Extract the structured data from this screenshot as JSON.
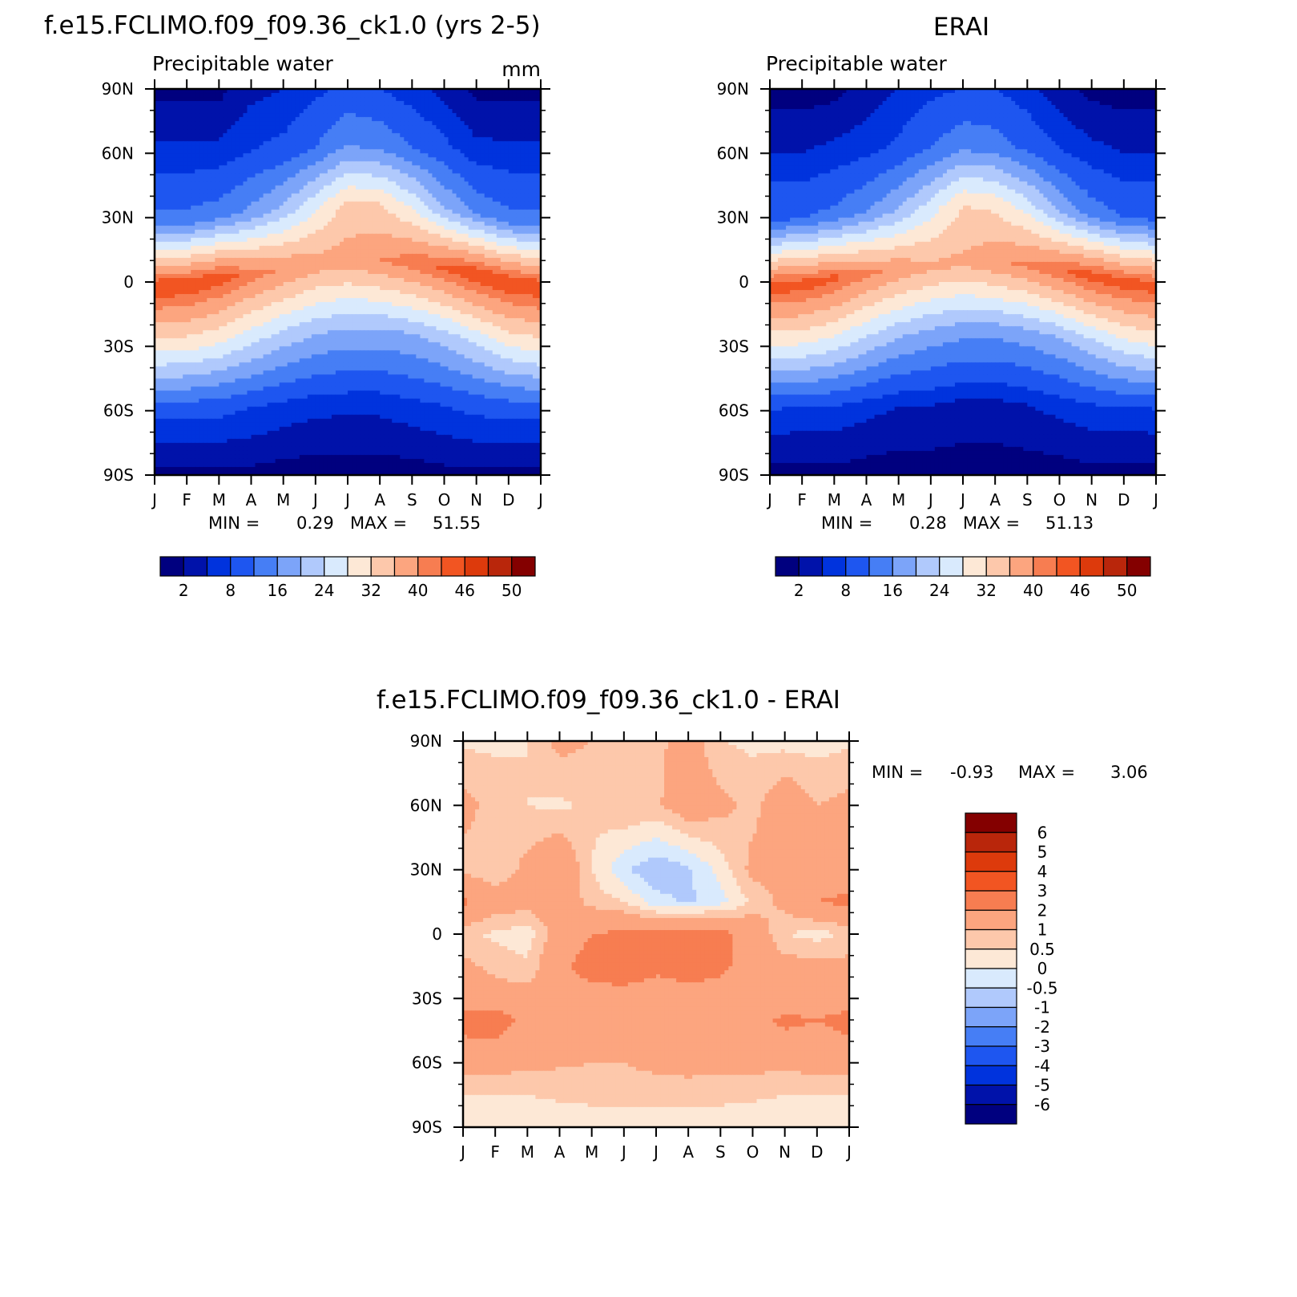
{
  "chart_data": [
    {
      "type": "heatmap",
      "title": "f.e15.FCLIMO.f09_f09.36_ck1.0 (yrs 2-5)",
      "subtitle": "Precipitable water",
      "units": "mm",
      "x_ticks": [
        "J",
        "F",
        "M",
        "A",
        "M",
        "J",
        "J",
        "A",
        "S",
        "O",
        "N",
        "D",
        "J"
      ],
      "y_ticks": [
        "90N",
        "60N",
        "30N",
        "0",
        "30S",
        "60S",
        "90S"
      ],
      "y_range": [
        -90,
        90
      ],
      "min_label": "MIN =",
      "min_value": "0.29",
      "max_label": "MAX =",
      "max_value": "51.55",
      "peak_lat_by_month": [
        -2,
        -1,
        2,
        4,
        6,
        8,
        10,
        10,
        9,
        7,
        4,
        0,
        -2
      ],
      "field_rows": [
        {
          "lat": 90,
          "values": [
            1,
            1,
            1,
            4,
            5,
            7,
            9,
            8,
            6,
            4,
            1,
            1,
            1
          ]
        },
        {
          "lat": 60,
          "values": [
            6,
            6,
            6,
            8,
            9,
            12,
            16,
            15,
            12,
            9,
            6,
            6,
            6
          ]
        },
        {
          "lat": 30,
          "values": [
            13,
            13,
            14,
            17,
            21,
            27,
            33,
            32,
            27,
            20,
            15,
            13,
            13
          ]
        },
        {
          "lat": 0,
          "values": [
            46,
            46,
            45,
            42,
            40,
            38,
            38,
            40,
            42,
            44,
            46,
            46,
            46
          ]
        },
        {
          "lat": -30,
          "values": [
            29,
            29,
            28,
            25,
            22,
            20,
            19,
            19,
            20,
            22,
            25,
            28,
            29
          ]
        },
        {
          "lat": -60,
          "values": [
            9,
            9,
            9,
            8,
            7,
            6,
            6,
            6,
            7,
            8,
            9,
            9,
            9
          ]
        },
        {
          "lat": -90,
          "values": [
            1,
            1,
            1,
            1,
            0.5,
            0.3,
            0.3,
            0.3,
            0.5,
            1,
            1,
            1,
            1
          ]
        }
      ],
      "colorbar": {
        "colors": [
          "#00007f",
          "#0012aa",
          "#0033dd",
          "#1e56f0",
          "#467ef5",
          "#7ca4f9",
          "#b0c9fc",
          "#d9eafd",
          "#fde8d6",
          "#fdc8ab",
          "#fca57f",
          "#f77d51",
          "#f25522",
          "#dd3a0c",
          "#b9260b",
          "#840000"
        ],
        "labels": [
          "2",
          "8",
          "16",
          "24",
          "32",
          "40",
          "46",
          "50"
        ]
      }
    },
    {
      "type": "heatmap",
      "title": "ERAI",
      "subtitle": "Precipitable water",
      "x_ticks": [
        "J",
        "F",
        "M",
        "A",
        "M",
        "J",
        "J",
        "A",
        "S",
        "O",
        "N",
        "D",
        "J"
      ],
      "y_ticks": [
        "90N",
        "60N",
        "30N",
        "0",
        "30S",
        "60S",
        "90S"
      ],
      "y_range": [
        -90,
        90
      ],
      "min_label": "MIN =",
      "min_value": "0.28",
      "max_label": "MAX =",
      "max_value": "51.13",
      "peak_lat_by_month": [
        -2,
        -1,
        2,
        4,
        6,
        7,
        9,
        9,
        8,
        6,
        3,
        0,
        -2
      ],
      "field_rows": [
        {
          "lat": 90,
          "values": [
            0.5,
            0.5,
            1,
            3,
            5,
            7,
            8,
            8,
            6,
            3,
            1,
            0.5,
            0.5
          ]
        },
        {
          "lat": 60,
          "values": [
            5,
            5,
            6,
            7,
            9,
            12,
            15,
            14,
            11,
            8,
            6,
            5,
            5
          ]
        },
        {
          "lat": 30,
          "values": [
            12,
            12,
            13,
            16,
            20,
            26,
            32,
            31,
            26,
            19,
            14,
            12,
            12
          ]
        },
        {
          "lat": 0,
          "values": [
            45,
            45,
            44,
            41,
            39,
            37,
            37,
            39,
            41,
            43,
            45,
            45,
            45
          ]
        },
        {
          "lat": -30,
          "values": [
            27,
            27,
            26,
            23,
            20,
            18,
            17,
            17,
            18,
            20,
            23,
            26,
            27
          ]
        },
        {
          "lat": -60,
          "values": [
            7,
            7,
            7,
            6,
            5,
            5,
            4,
            4,
            5,
            6,
            7,
            7,
            7
          ]
        },
        {
          "lat": -90,
          "values": [
            1,
            1,
            1,
            0.5,
            0.3,
            0.3,
            0.3,
            0.3,
            0.3,
            0.5,
            1,
            1,
            1
          ]
        }
      ],
      "colorbar": {
        "colors": [
          "#00007f",
          "#0012aa",
          "#0033dd",
          "#1e56f0",
          "#467ef5",
          "#7ca4f9",
          "#b0c9fc",
          "#d9eafd",
          "#fde8d6",
          "#fdc8ab",
          "#fca57f",
          "#f77d51",
          "#f25522",
          "#dd3a0c",
          "#b9260b",
          "#840000"
        ],
        "labels": [
          "2",
          "8",
          "16",
          "24",
          "32",
          "40",
          "46",
          "50"
        ]
      }
    },
    {
      "type": "heatmap",
      "title": "f.e15.FCLIMO.f09_f09.36_ck1.0 - ERAI",
      "x_ticks": [
        "J",
        "F",
        "M",
        "A",
        "M",
        "J",
        "J",
        "A",
        "S",
        "O",
        "N",
        "D",
        "J"
      ],
      "y_ticks": [
        "90N",
        "60N",
        "30N",
        "0",
        "30S",
        "60S",
        "90S"
      ],
      "y_range": [
        -90,
        90
      ],
      "min_label": "MIN =",
      "min_value": "-0.93",
      "max_label": "MAX =",
      "max_value": "3.06",
      "field_rows": [
        {
          "lat": 90,
          "values": [
            0.4,
            0.4,
            0.5,
            1.2,
            1.0,
            0.5,
            0.8,
            1.4,
            0.5,
            0.4,
            0.3,
            0.3,
            0.4
          ]
        },
        {
          "lat": 60,
          "values": [
            1.2,
            0.8,
            0.5,
            0.4,
            0.6,
            1.0,
            0.9,
            1.5,
            1.2,
            0.8,
            1.6,
            1.0,
            1.2
          ]
        },
        {
          "lat": 30,
          "values": [
            0.8,
            0.6,
            1.2,
            1.8,
            0.5,
            -0.4,
            -0.9,
            -0.6,
            0.2,
            1.2,
            1.3,
            1.5,
            1.4
          ]
        },
        {
          "lat": 15,
          "values": [
            2.2,
            1.4,
            1.3,
            1.5,
            0.8,
            0.5,
            -0.3,
            -0.6,
            -0.2,
            0.6,
            1.2,
            2.0,
            2.2
          ]
        },
        {
          "lat": 0,
          "values": [
            0.6,
            0.4,
            0.2,
            1.4,
            2.0,
            2.2,
            2.2,
            2.6,
            2.3,
            1.6,
            0.5,
            0.3,
            0.6
          ]
        },
        {
          "lat": -15,
          "values": [
            1.2,
            0.8,
            0.6,
            1.8,
            2.4,
            2.6,
            2.2,
            2.5,
            2.2,
            1.6,
            1.3,
            1.2,
            1.2
          ]
        },
        {
          "lat": -30,
          "values": [
            1.6,
            1.4,
            1.3,
            1.5,
            1.6,
            1.6,
            1.5,
            1.5,
            1.6,
            1.6,
            1.5,
            1.5,
            1.6
          ]
        },
        {
          "lat": -40,
          "values": [
            2.3,
            2.5,
            1.7,
            1.5,
            1.5,
            1.4,
            1.4,
            1.5,
            1.5,
            1.6,
            2.2,
            2.0,
            2.3
          ]
        },
        {
          "lat": -60,
          "values": [
            1.5,
            1.4,
            1.3,
            1.1,
            1.0,
            1.0,
            1.1,
            1.2,
            1.3,
            1.3,
            1.3,
            1.4,
            1.5
          ]
        },
        {
          "lat": -70,
          "values": [
            0.6,
            0.6,
            0.6,
            0.7,
            0.8,
            0.9,
            0.9,
            0.9,
            0.8,
            0.7,
            0.6,
            0.6,
            0.6
          ]
        },
        {
          "lat": -90,
          "values": [
            0.2,
            0.2,
            0.2,
            0.2,
            0.2,
            0.1,
            0.2,
            0.2,
            0.2,
            0.2,
            0.2,
            0.2,
            0.2
          ]
        }
      ],
      "colorbar": {
        "colors": [
          "#840000",
          "#b9260b",
          "#dd3a0c",
          "#f25522",
          "#f77d51",
          "#fca57f",
          "#fdc8ab",
          "#fde8d6",
          "#d9eafd",
          "#b0c9fc",
          "#7ca4f9",
          "#467ef5",
          "#1e56f0",
          "#0033dd",
          "#0012aa",
          "#00007f"
        ],
        "labels": [
          "6",
          "5",
          "4",
          "3",
          "2",
          "1",
          "0.5",
          "0",
          "-0.5",
          "-1",
          "-2",
          "-3",
          "-4",
          "-5",
          "-6"
        ]
      }
    }
  ]
}
